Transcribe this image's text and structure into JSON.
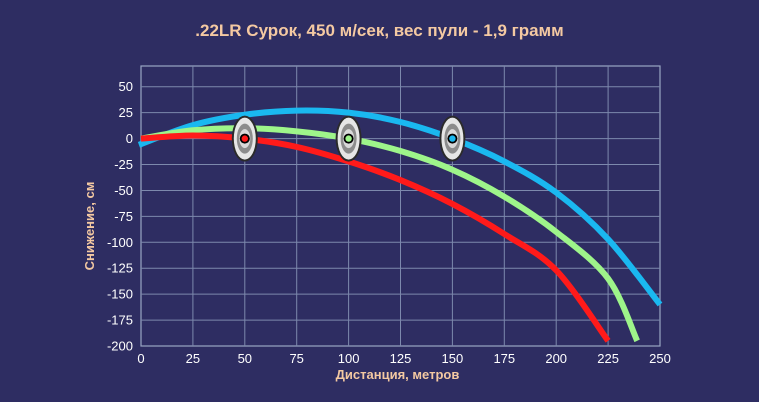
{
  "chart_data": {
    "type": "line",
    "title": ".22LR Сурок, 450 м/сек, вес пули - 1,9 грамм",
    "xlabel": "Дистанция, метров",
    "ylabel": "Снижение, см",
    "xlim": [
      0,
      250
    ],
    "ylim": [
      -200,
      70
    ],
    "x_ticks": [
      0,
      25,
      50,
      75,
      100,
      125,
      150,
      175,
      200,
      225,
      250
    ],
    "y_ticks": [
      50,
      25,
      0,
      -25,
      -50,
      -75,
      -100,
      -125,
      -150,
      -175,
      -200
    ],
    "grid": true,
    "background": "#2e2d62",
    "series": [
      {
        "color": "#ff1a1a",
        "zero_distance": 50,
        "x": [
          0,
          25,
          50,
          75,
          100,
          125,
          150,
          175,
          200,
          225
        ],
        "y": [
          0,
          3,
          0,
          -8,
          -22,
          -40,
          -63,
          -92,
          -127,
          -195
        ]
      },
      {
        "color": "#9ef58a",
        "zero_distance": 100,
        "x": [
          0,
          25,
          50,
          75,
          100,
          125,
          150,
          175,
          200,
          225,
          239
        ],
        "y": [
          0,
          8,
          10,
          7,
          0,
          -12,
          -30,
          -56,
          -90,
          -135,
          -195
        ]
      },
      {
        "color": "#1ab8f0",
        "zero_distance": 150,
        "x": [
          -1,
          25,
          50,
          75,
          100,
          125,
          150,
          175,
          200,
          225,
          250
        ],
        "y": [
          -6,
          13,
          23,
          27,
          25,
          16,
          0,
          -22,
          -52,
          -97,
          -160
        ]
      }
    ],
    "targets": [
      50,
      100,
      150
    ]
  }
}
